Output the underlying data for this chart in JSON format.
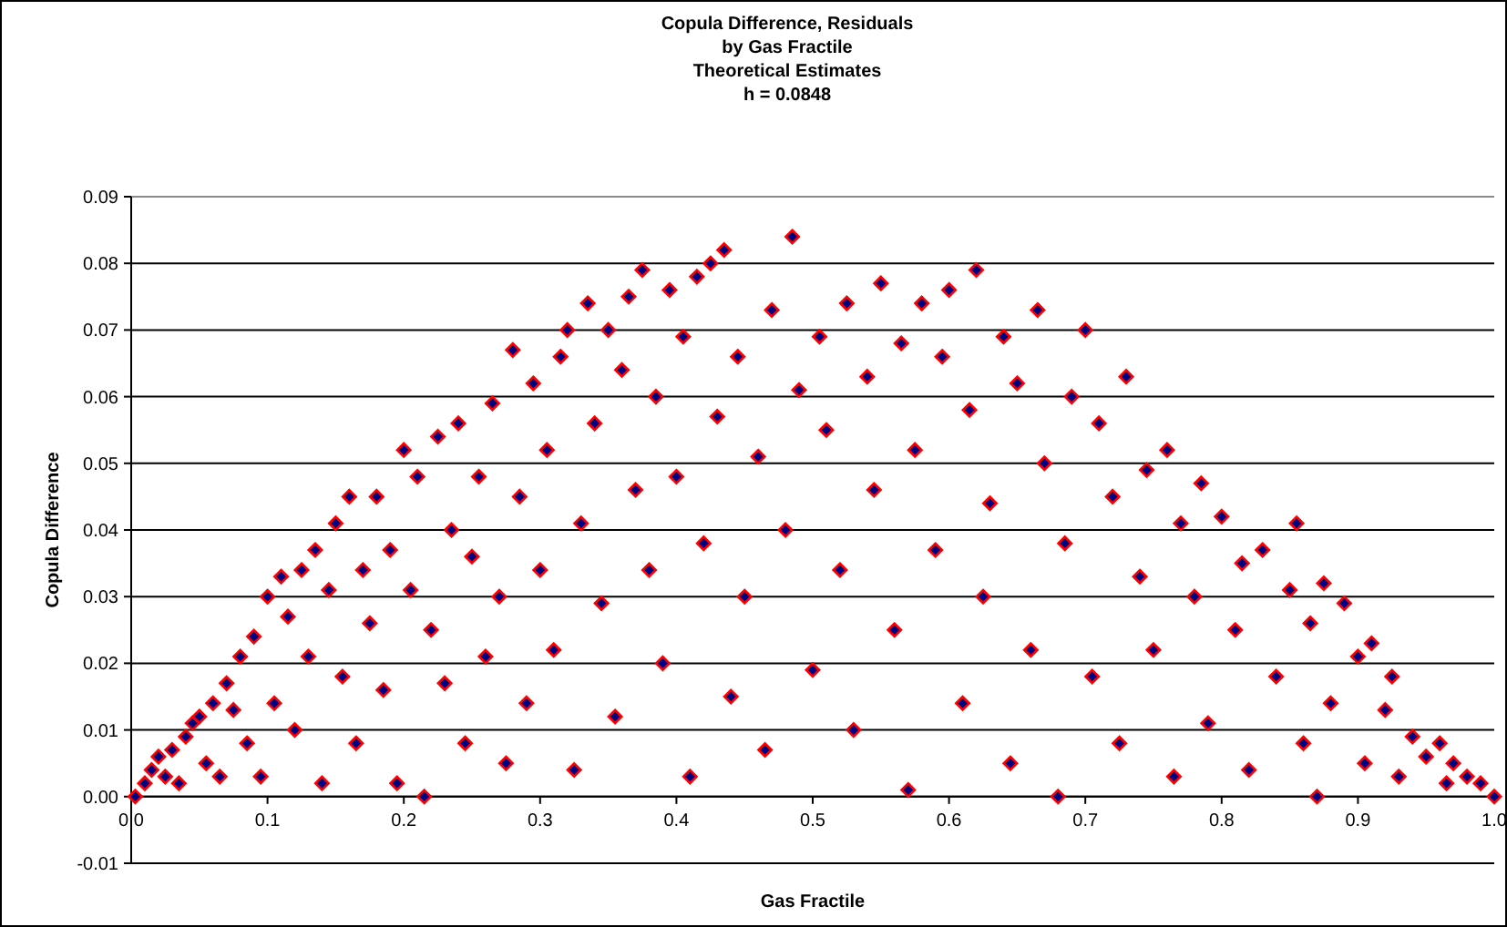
{
  "chart_data": {
    "type": "scatter",
    "title": "Copula Difference, Residuals\nby Gas Fractile\nTheoretical Estimates\nh = 0.0848",
    "xlabel": "Gas Fractile",
    "ylabel": "Copula Difference",
    "xlim": [
      0,
      1
    ],
    "ylim": [
      -0.01,
      0.09
    ],
    "xticks": [
      {
        "value": 0,
        "label": "0.0"
      },
      {
        "value": 0.1,
        "label": "0.1"
      },
      {
        "value": 0.2,
        "label": "0.2"
      },
      {
        "value": 0.3,
        "label": "0.3"
      },
      {
        "value": 0.4,
        "label": "0.4"
      },
      {
        "value": 0.5,
        "label": "0.5"
      },
      {
        "value": 0.6,
        "label": "0.6"
      },
      {
        "value": 0.7,
        "label": "0.7"
      },
      {
        "value": 0.8,
        "label": "0.8"
      },
      {
        "value": 0.9,
        "label": "0.9"
      },
      {
        "value": 1,
        "label": "1.0"
      }
    ],
    "yticks": [
      {
        "value": -0.01,
        "label": "-0.01"
      },
      {
        "value": 0,
        "label": "0.00"
      },
      {
        "value": 0.01,
        "label": "0.01"
      },
      {
        "value": 0.02,
        "label": "0.02"
      },
      {
        "value": 0.03,
        "label": "0.03"
      },
      {
        "value": 0.04,
        "label": "0.04"
      },
      {
        "value": 0.05,
        "label": "0.05"
      },
      {
        "value": 0.06,
        "label": "0.06"
      },
      {
        "value": 0.07,
        "label": "0.07"
      },
      {
        "value": 0.08,
        "label": "0.08"
      },
      {
        "value": 0.09,
        "label": "0.09"
      }
    ],
    "grid": "y",
    "marker": "diamond",
    "series": [
      {
        "color": "#000080",
        "x": [
          0.003,
          0.01,
          0.015,
          0.02,
          0.025,
          0.03,
          0.035,
          0.04,
          0.045,
          0.05,
          0.055,
          0.06,
          0.065,
          0.07,
          0.075,
          0.08,
          0.085,
          0.09,
          0.095,
          0.1,
          0.105,
          0.11,
          0.115,
          0.12,
          0.125,
          0.13,
          0.135,
          0.14,
          0.145,
          0.15,
          0.155,
          0.16,
          0.165,
          0.17,
          0.175,
          0.18,
          0.185,
          0.19,
          0.195,
          0.2,
          0.205,
          0.21,
          0.215,
          0.22,
          0.225,
          0.23,
          0.235,
          0.24,
          0.245,
          0.25,
          0.255,
          0.26,
          0.265,
          0.27,
          0.275,
          0.28,
          0.285,
          0.29,
          0.295,
          0.3,
          0.305,
          0.31,
          0.315,
          0.32,
          0.325,
          0.33,
          0.335,
          0.34,
          0.345,
          0.35,
          0.355,
          0.36,
          0.365,
          0.37,
          0.375,
          0.38,
          0.385,
          0.39,
          0.395,
          0.4,
          0.405,
          0.41,
          0.415,
          0.42,
          0.425,
          0.43,
          0.435,
          0.44,
          0.445,
          0.45,
          0.46,
          0.465,
          0.47,
          0.48,
          0.485,
          0.49,
          0.5,
          0.505,
          0.51,
          0.52,
          0.525,
          0.53,
          0.54,
          0.545,
          0.55,
          0.56,
          0.565,
          0.57,
          0.575,
          0.58,
          0.59,
          0.595,
          0.6,
          0.61,
          0.615,
          0.62,
          0.625,
          0.63,
          0.64,
          0.645,
          0.65,
          0.66,
          0.665,
          0.67,
          0.68,
          0.685,
          0.69,
          0.7,
          0.705,
          0.71,
          0.72,
          0.725,
          0.73,
          0.74,
          0.745,
          0.75,
          0.76,
          0.765,
          0.77,
          0.78,
          0.785,
          0.79,
          0.8,
          0.81,
          0.815,
          0.82,
          0.83,
          0.84,
          0.85,
          0.855,
          0.86,
          0.865,
          0.87,
          0.875,
          0.88,
          0.89,
          0.9,
          0.905,
          0.91,
          0.92,
          0.925,
          0.93,
          0.94,
          0.95,
          0.96,
          0.965,
          0.97,
          0.98,
          0.99,
          1.0
        ],
        "values": [
          0.0,
          0.002,
          0.004,
          0.006,
          0.003,
          0.007,
          0.002,
          0.009,
          0.011,
          0.012,
          0.005,
          0.014,
          0.003,
          0.017,
          0.013,
          0.021,
          0.008,
          0.024,
          0.003,
          0.03,
          0.014,
          0.033,
          0.027,
          0.01,
          0.034,
          0.021,
          0.037,
          0.002,
          0.031,
          0.041,
          0.018,
          0.045,
          0.008,
          0.034,
          0.026,
          0.045,
          0.016,
          0.037,
          0.002,
          0.052,
          0.031,
          0.048,
          0.0,
          0.025,
          0.054,
          0.017,
          0.04,
          0.056,
          0.008,
          0.036,
          0.048,
          0.021,
          0.059,
          0.03,
          0.005,
          0.067,
          0.045,
          0.014,
          0.062,
          0.034,
          0.052,
          0.022,
          0.066,
          0.07,
          0.004,
          0.041,
          0.074,
          0.056,
          0.029,
          0.07,
          0.012,
          0.064,
          0.075,
          0.046,
          0.079,
          0.034,
          0.06,
          0.02,
          0.076,
          0.048,
          0.069,
          0.003,
          0.078,
          0.038,
          0.08,
          0.057,
          0.082,
          0.015,
          0.066,
          0.03,
          0.051,
          0.007,
          0.073,
          0.04,
          0.084,
          0.061,
          0.019,
          0.069,
          0.055,
          0.034,
          0.074,
          0.01,
          0.063,
          0.046,
          0.077,
          0.025,
          0.068,
          0.001,
          0.052,
          0.074,
          0.037,
          0.066,
          0.076,
          0.014,
          0.058,
          0.079,
          0.03,
          0.044,
          0.069,
          0.005,
          0.062,
          0.022,
          0.073,
          0.05,
          0.0,
          0.038,
          0.06,
          0.07,
          0.018,
          0.056,
          0.045,
          0.008,
          0.063,
          0.033,
          0.049,
          0.022,
          0.052,
          0.003,
          0.041,
          0.03,
          0.047,
          0.011,
          0.042,
          0.025,
          0.035,
          0.004,
          0.037,
          0.018,
          0.031,
          0.041,
          0.008,
          0.026,
          0.0,
          0.032,
          0.014,
          0.029,
          0.021,
          0.005,
          0.023,
          0.013,
          0.018,
          0.003,
          0.009,
          0.006,
          0.008,
          0.002,
          0.005,
          0.003,
          0.002,
          0.0
        ]
      }
    ]
  }
}
